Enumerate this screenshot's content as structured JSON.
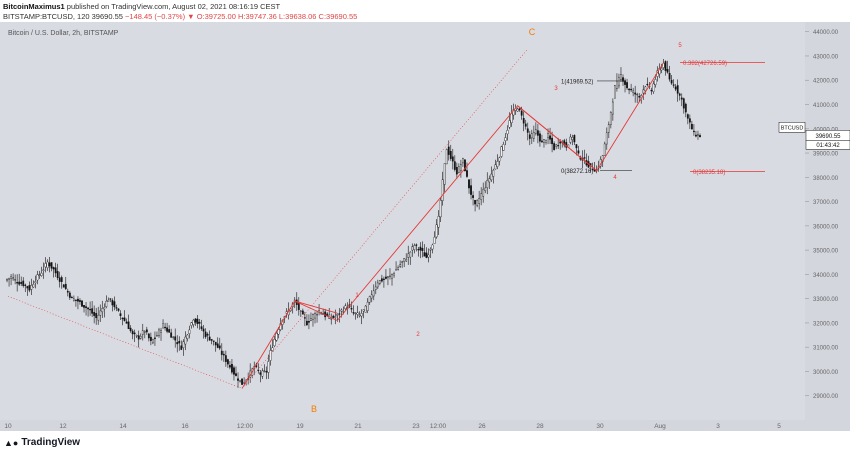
{
  "header": {
    "author": "BitcoinMaximus1",
    "published_text": "published on TradingView.com, August 02, 2021 08:16:19 CEST",
    "symbol_line": "BITSTAMP:BTCUSD, 120",
    "last": "39690.55",
    "change": "−148.45 (−0.37%)",
    "arrow": "▼",
    "o": "O:39725.00",
    "h": "H:39747.36",
    "l": "L:39638.06",
    "c": "C:39690.55"
  },
  "footer": {
    "brand": "TradingView"
  },
  "colors": {
    "bg": "#d4d6de",
    "pane_bg": "#d9dbe3",
    "up": "#ffffff",
    "down": "#131313",
    "wave": "#e53935",
    "label_orange": "#f57c00"
  },
  "chart_data": {
    "type": "candlestick",
    "title": "Bitcoin / U.S. Dollar, 2h, BITSTAMP",
    "series_name": "BTCUSD",
    "y_axis": {
      "ticks": [
        29000,
        30000,
        31000,
        32000,
        33000,
        34000,
        35000,
        36000,
        37000,
        38000,
        39000,
        40000,
        41000,
        42000,
        43000,
        44000
      ],
      "ylim": [
        28000,
        44400
      ]
    },
    "x_axis": {
      "ticks": [
        "10",
        "12",
        "14",
        "16",
        "12:00",
        "19",
        "21",
        "23",
        "12:00",
        "26",
        "28",
        "30",
        "Aug",
        "3",
        "5"
      ]
    },
    "last_price": {
      "value": "39690.55",
      "countdown": "01:43:42",
      "label": "BTCUSD"
    },
    "elliott": {
      "abc": [
        {
          "label": "B",
          "x": "July 20",
          "y": 29300
        },
        {
          "label": "C",
          "x": "beyond",
          "y": 44000
        }
      ],
      "waves": [
        {
          "label": "1",
          "y": 32900
        },
        {
          "label": "2",
          "y": 32100
        },
        {
          "label": "3",
          "y": 40950
        },
        {
          "label": "4",
          "y": 38272
        },
        {
          "label": "5",
          "y": 42726
        }
      ]
    },
    "annotations": {
      "fib_top": {
        "text": "1(41969.52)",
        "y": 41969.52
      },
      "fib_bottom": {
        "text": "0(38272.16)",
        "y": 38272.16
      },
      "fib_r1": {
        "text": "0.382(42726.59)",
        "y": 42726.59
      },
      "fib_r0": {
        "text": "0(38235.18)",
        "y": 38235.18
      }
    },
    "price_path": [
      [
        0,
        33750
      ],
      [
        3,
        33900
      ],
      [
        6,
        33700
      ],
      [
        9,
        33600
      ],
      [
        12,
        33400
      ],
      [
        15,
        33800
      ],
      [
        18,
        34100
      ],
      [
        21,
        34500
      ],
      [
        24,
        34200
      ],
      [
        27,
        33800
      ],
      [
        30,
        33400
      ],
      [
        33,
        33000
      ],
      [
        36,
        32900
      ],
      [
        39,
        32700
      ],
      [
        42,
        32500
      ],
      [
        45,
        32200
      ],
      [
        48,
        32600
      ],
      [
        51,
        33000
      ],
      [
        54,
        32700
      ],
      [
        57,
        32300
      ],
      [
        60,
        32000
      ],
      [
        63,
        31500
      ],
      [
        66,
        31400
      ],
      [
        69,
        31700
      ],
      [
        72,
        31200
      ],
      [
        75,
        31500
      ],
      [
        78,
        31900
      ],
      [
        81,
        31600
      ],
      [
        84,
        31300
      ],
      [
        87,
        31000
      ],
      [
        90,
        31600
      ],
      [
        93,
        32200
      ],
      [
        96,
        31900
      ],
      [
        99,
        31500
      ],
      [
        102,
        31300
      ],
      [
        105,
        31000
      ],
      [
        108,
        30600
      ],
      [
        111,
        30200
      ],
      [
        114,
        29800
      ],
      [
        117,
        29500
      ],
      [
        120,
        29800
      ],
      [
        123,
        30200
      ],
      [
        126,
        29900
      ],
      [
        129,
        30000
      ],
      [
        131,
        30800
      ],
      [
        134,
        31600
      ],
      [
        137,
        32200
      ],
      [
        140,
        32500
      ],
      [
        143,
        32900
      ],
      [
        146,
        32400
      ],
      [
        149,
        32000
      ],
      [
        152,
        32300
      ],
      [
        155,
        32500
      ],
      [
        158,
        32300
      ],
      [
        161,
        32200
      ],
      [
        164,
        32300
      ],
      [
        166,
        32500
      ],
      [
        169,
        32700
      ],
      [
        172,
        32400
      ],
      [
        175,
        32300
      ],
      [
        178,
        32600
      ],
      [
        181,
        33200
      ],
      [
        184,
        33700
      ],
      [
        187,
        33800
      ],
      [
        190,
        33900
      ],
      [
        193,
        34200
      ],
      [
        196,
        34500
      ],
      [
        199,
        34800
      ],
      [
        202,
        35200
      ],
      [
        205,
        35000
      ],
      [
        208,
        34700
      ],
      [
        211,
        35300
      ],
      [
        214,
        36300
      ],
      [
        216,
        37800
      ],
      [
        218,
        39200
      ],
      [
        220,
        38800
      ],
      [
        223,
        38200
      ],
      [
        226,
        38700
      ],
      [
        229,
        37600
      ],
      [
        232,
        36800
      ],
      [
        235,
        37300
      ],
      [
        238,
        37800
      ],
      [
        241,
        38300
      ],
      [
        244,
        38900
      ],
      [
        247,
        39700
      ],
      [
        250,
        40600
      ],
      [
        253,
        40900
      ],
      [
        256,
        40300
      ],
      [
        259,
        39600
      ],
      [
        262,
        39900
      ],
      [
        265,
        39400
      ],
      [
        268,
        39700
      ],
      [
        271,
        39200
      ],
      [
        274,
        39500
      ],
      [
        277,
        39300
      ],
      [
        280,
        39700
      ],
      [
        283,
        38900
      ],
      [
        286,
        38700
      ],
      [
        289,
        38400
      ],
      [
        292,
        38300
      ],
      [
        295,
        38900
      ],
      [
        298,
        40200
      ],
      [
        301,
        41700
      ],
      [
        304,
        42200
      ],
      [
        307,
        41700
      ],
      [
        310,
        41500
      ],
      [
        313,
        41300
      ],
      [
        316,
        41800
      ],
      [
        319,
        41600
      ],
      [
        322,
        42300
      ],
      [
        325,
        42700
      ],
      [
        328,
        42000
      ],
      [
        331,
        41700
      ],
      [
        334,
        41200
      ],
      [
        337,
        40400
      ],
      [
        340,
        39800
      ],
      [
        343,
        39700
      ]
    ]
  }
}
